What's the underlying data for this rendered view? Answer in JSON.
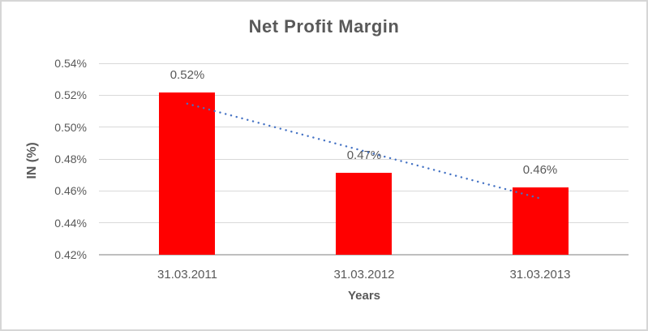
{
  "chart_data": {
    "type": "bar",
    "title": "Net Profit Margin",
    "xlabel": "Years",
    "ylabel": "IN (%)",
    "categories": [
      "31.03.2011",
      "31.03.2012",
      "31.03.2013"
    ],
    "values": [
      0.5215,
      0.4715,
      0.462
    ],
    "data_labels": [
      "0.52%",
      "0.47%",
      "0.46%"
    ],
    "ylim": [
      0.42,
      0.54
    ],
    "y_tick_step": 0.02,
    "y_ticks": [
      {
        "label": "0.54%",
        "value": 0.54
      },
      {
        "label": "0.52%",
        "value": 0.52
      },
      {
        "label": "0.50%",
        "value": 0.5
      },
      {
        "label": "0.48%",
        "value": 0.48
      },
      {
        "label": "0.46%",
        "value": 0.46
      },
      {
        "label": "0.44%",
        "value": 0.44
      },
      {
        "label": "0.42%",
        "value": 0.42
      }
    ],
    "grid": true,
    "legend": "none",
    "trendline": {
      "type": "linear",
      "style": "dotted",
      "start_value": 0.5147,
      "end_value": 0.4553
    },
    "colors": {
      "bar": "#FF0000",
      "trendline": "#4472C4",
      "text": "#595959",
      "gridline": "#D9D9D9",
      "axis_line": "#BFBFBF",
      "border": "#D6D6D6",
      "background": "#FFFFFF"
    }
  }
}
